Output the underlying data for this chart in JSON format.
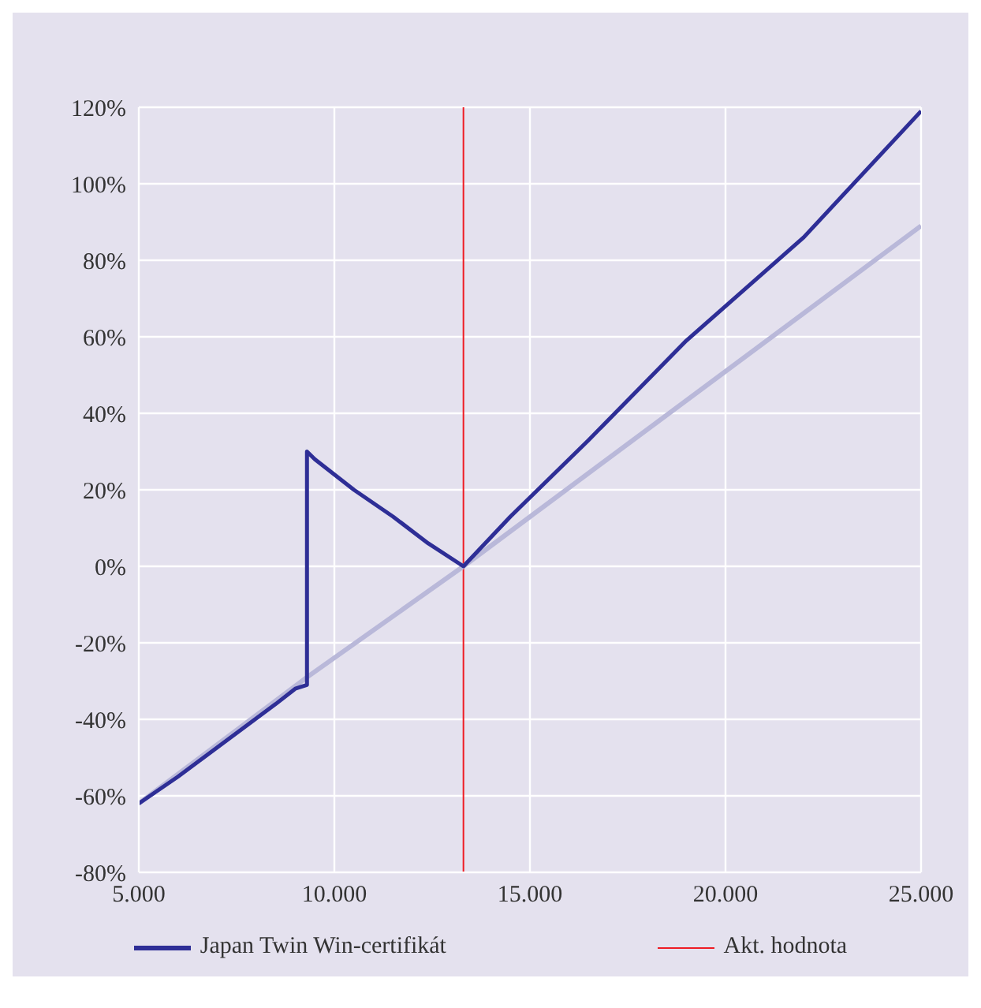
{
  "chart_data": {
    "type": "line",
    "xlim": [
      5000,
      25000
    ],
    "xticks": [
      {
        "value": 5000,
        "label": "5.000"
      },
      {
        "value": 10000,
        "label": "10.000"
      },
      {
        "value": 15000,
        "label": "15.000"
      },
      {
        "value": 20000,
        "label": "20.000"
      },
      {
        "value": 25000,
        "label": "25.000"
      }
    ],
    "ylim": [
      -80,
      120
    ],
    "yticks": [
      {
        "value": -80,
        "label": "-80%"
      },
      {
        "value": -60,
        "label": "-60%"
      },
      {
        "value": -40,
        "label": "-40%"
      },
      {
        "value": -20,
        "label": "-20%"
      },
      {
        "value": 0,
        "label": "0%"
      },
      {
        "value": 20,
        "label": "20%"
      },
      {
        "value": 40,
        "label": "40%"
      },
      {
        "value": 60,
        "label": "60%"
      },
      {
        "value": 80,
        "label": "80%"
      },
      {
        "value": 100,
        "label": "100%"
      },
      {
        "value": 120,
        "label": "120%"
      }
    ],
    "grid": true,
    "legend": "bottom",
    "line_style": "solid",
    "marker": "none",
    "series": [
      {
        "color": "#b9b8d9",
        "x": [
          5000,
          9300,
          13300,
          25000
        ],
        "values": [
          -62,
          -29,
          0,
          89
        ]
      },
      {
        "name": "Japan Twin Win-certifikát",
        "color": "#2e2e96",
        "x": [
          5000,
          6000,
          8500,
          9000,
          9300,
          9300,
          9500,
          10500,
          11500,
          12400,
          13300,
          14500,
          16500,
          19000,
          22000,
          25000
        ],
        "values": [
          -62,
          -55,
          -36,
          -32,
          -31,
          30,
          28,
          20,
          13,
          6,
          0,
          13,
          33,
          59,
          86,
          119
        ]
      }
    ],
    "ref_lines": [
      {
        "axis": "x",
        "value": 13300,
        "label": "Akt. hodnota",
        "color": "#ee1c24",
        "line_style": "solid"
      }
    ]
  }
}
